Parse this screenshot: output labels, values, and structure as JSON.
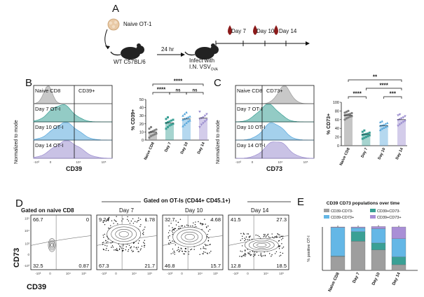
{
  "panel_letters": {
    "a": "A",
    "b": "B",
    "c": "C",
    "d": "D",
    "e": "E"
  },
  "panel_a": {
    "cells_label": "Naive OT-1",
    "mouse1_label": "WT C57BL/6",
    "arrow_label": "24 hr",
    "mouse2_label_line1": "Infect with",
    "mouse2_label_line2": "I.N. VSV",
    "mouse2_label_sub": "OVA",
    "timepoints": [
      "Day 7",
      "Day 10",
      "Day 14"
    ],
    "blood_color": "#8b1a1a"
  },
  "panel_b": {
    "histogram": {
      "ylabel": "Normalized to mode",
      "xlabel": "CD39",
      "gate_label": "CD39+",
      "rows": [
        "Naive CD8",
        "Day 7 OT-I",
        "Day 10 OT-I",
        "Day 14 OT-I"
      ],
      "ticks": [
        "-10³",
        "0",
        "10⁴",
        "10⁵"
      ]
    }
  },
  "panel_c": {
    "histogram": {
      "ylabel": "Normalized to mode",
      "xlabel": "CD73",
      "gate_label": "CD73+",
      "rows": [
        "Naive CD8",
        "Day 7 OT-I",
        "Day 10 OT-I",
        "Day 14 OT-I"
      ],
      "ticks": [
        "-10³",
        "0",
        "10⁴",
        "10⁵"
      ]
    }
  },
  "panel_d": {
    "header": "Gated on OT-Is (CD44+ CD45.1+)",
    "first_title": "Gated on naive CD8",
    "titles": [
      "Day 7",
      "Day 10",
      "Day 14"
    ],
    "ylabel": "CD73",
    "xlabel": "CD39",
    "quadrants": [
      {
        "ul": "66.7",
        "ur": "0",
        "ll": "32.5",
        "lr": "0.87"
      },
      {
        "ul": "9.24",
        "ur": "1.78",
        "ll": "67.3",
        "lr": "21.7"
      },
      {
        "ul": "32.7",
        "ur": "4.68",
        "ll": "46.8",
        "lr": "15.7"
      },
      {
        "ul": "41.5",
        "ur": "27.3",
        "ll": "12.8",
        "lr": "18.5"
      }
    ],
    "yticks": [
      "10⁵",
      "10⁴",
      "10³",
      "0",
      "-10³"
    ],
    "xticks": [
      "-10³",
      "0",
      "10⁴",
      "10⁵"
    ]
  },
  "chart_data": [
    {
      "type": "scatter",
      "panel": "B",
      "ylabel": "% CD39+",
      "ylim": [
        0,
        50
      ],
      "yticks": [
        0,
        10,
        20,
        30,
        40,
        50
      ],
      "categories": [
        "Naive CD8",
        "Day 7",
        "Day 10",
        "Day 14"
      ],
      "means": [
        10,
        21,
        26,
        27
      ],
      "points": [
        [
          3,
          5,
          6,
          7,
          8,
          9,
          10,
          11,
          12,
          13,
          14,
          16
        ],
        [
          14,
          16,
          18,
          19,
          20,
          21,
          22,
          23,
          24,
          25,
          26,
          28
        ],
        [
          17,
          19,
          21,
          23,
          24,
          25,
          26,
          27,
          28,
          29,
          30,
          32,
          34
        ],
        [
          16,
          19,
          21,
          23,
          25,
          26,
          27,
          28,
          30,
          32,
          35
        ]
      ],
      "colors": [
        "#7f7f7f",
        "#3aa095",
        "#5aa9dc",
        "#9d8fd0"
      ],
      "markers": [
        "circle",
        "square",
        "triangle-up",
        "triangle-down"
      ],
      "significance": [
        {
          "from": 0,
          "to": 3,
          "label": "****"
        },
        {
          "from": 0,
          "to": 1,
          "label": "****"
        },
        {
          "from": 1,
          "to": 2,
          "label": "ns"
        },
        {
          "from": 2,
          "to": 3,
          "label": "ns"
        }
      ]
    },
    {
      "type": "scatter",
      "panel": "C",
      "ylabel": "% CD73+",
      "ylim": [
        0,
        100
      ],
      "yticks": [
        0,
        20,
        40,
        60,
        80,
        100
      ],
      "categories": [
        "Naive CD8",
        "Day 7",
        "Day 10",
        "Day 14"
      ],
      "means": [
        70,
        26,
        46,
        60
      ],
      "points": [
        [
          60,
          63,
          65,
          67,
          68,
          70,
          71,
          72,
          73,
          75,
          76,
          78,
          80
        ],
        [
          16,
          18,
          20,
          22,
          24,
          25,
          26,
          27,
          28,
          30,
          32,
          35
        ],
        [
          36,
          39,
          41,
          43,
          45,
          46,
          47,
          48,
          50,
          52,
          54,
          56
        ],
        [
          46,
          49,
          52,
          55,
          57,
          59,
          61,
          63,
          65,
          68,
          70,
          72
        ]
      ],
      "colors": [
        "#7f7f7f",
        "#3aa095",
        "#5aa9dc",
        "#9d8fd0"
      ],
      "markers": [
        "circle",
        "square",
        "triangle-up",
        "triangle-down"
      ],
      "significance": [
        {
          "from": 0,
          "to": 3,
          "label": "**"
        },
        {
          "from": 1,
          "to": 3,
          "label": "****"
        },
        {
          "from": 0,
          "to": 1,
          "label": "****"
        },
        {
          "from": 2,
          "to": 3,
          "label": "***"
        }
      ]
    },
    {
      "type": "bar",
      "panel": "E",
      "title": "CD39 CD73 populations over time",
      "ylabel": "% positive OT-I",
      "ylim": [
        0,
        100
      ],
      "categories": [
        "Naive CD8",
        "Day 7",
        "Day 10",
        "Day 14"
      ],
      "stacked": true,
      "series": [
        {
          "name": "CD39-CD73-",
          "color": "#9e9e9e",
          "values": [
            32,
            67,
            47,
            13
          ]
        },
        {
          "name": "CD39+CD73-",
          "color": "#3aa095",
          "values": [
            1,
            22,
            16,
            18
          ]
        },
        {
          "name": "CD39-CD73+",
          "color": "#64b7e6",
          "values": [
            66,
            9,
            33,
            42
          ]
        },
        {
          "name": "CD39+CD73+",
          "color": "#a98fd6",
          "values": [
            1,
            2,
            5,
            27
          ]
        }
      ]
    }
  ],
  "histogram_colors": [
    "#9a9a9a",
    "#3aa095",
    "#5aa9dc",
    "#9d8fd0"
  ]
}
